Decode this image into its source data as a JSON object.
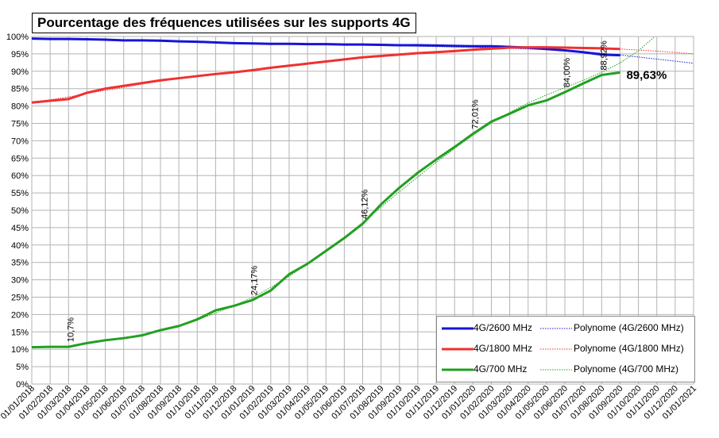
{
  "chart_data": {
    "type": "line",
    "title": "Pourcentage des fréquences utilisées sur les supports 4G",
    "xlabel": "",
    "ylabel": "",
    "ylim": [
      0,
      100
    ],
    "y_ticks": [
      "0%",
      "5%",
      "10%",
      "15%",
      "20%",
      "25%",
      "30%",
      "35%",
      "40%",
      "45%",
      "50%",
      "55%",
      "60%",
      "65%",
      "70%",
      "75%",
      "80%",
      "85%",
      "90%",
      "95%",
      "100%"
    ],
    "categories": [
      "01/01/2018",
      "01/02/2018",
      "01/03/2018",
      "01/04/2018",
      "01/05/2018",
      "01/06/2018",
      "01/07/2018",
      "01/08/2018",
      "01/09/2018",
      "01/10/2018",
      "01/11/2018",
      "01/12/2018",
      "01/01/2019",
      "01/02/2019",
      "01/03/2019",
      "01/04/2019",
      "01/05/2019",
      "01/06/2019",
      "01/07/2019",
      "01/08/2019",
      "01/09/2019",
      "01/10/2019",
      "01/11/2019",
      "01/12/2019",
      "01/01/2020",
      "01/02/2020",
      "01/03/2020",
      "01/04/2020",
      "01/05/2020",
      "01/06/2020",
      "01/07/2020",
      "01/08/2020",
      "01/09/2020",
      "01/10/2020",
      "01/11/2020",
      "01/12/2020",
      "01/01/2021"
    ],
    "grid": true,
    "legend_position": "bottom-right",
    "series": [
      {
        "name": "4G/2600 MHz",
        "color": "#1515d6",
        "values": [
          99.4,
          99.3,
          99.3,
          99.2,
          99.1,
          98.9,
          98.9,
          98.8,
          98.6,
          98.5,
          98.3,
          98.1,
          98.0,
          97.9,
          97.9,
          97.8,
          97.8,
          97.7,
          97.7,
          97.6,
          97.5,
          97.5,
          97.4,
          97.3,
          97.2,
          97.2,
          97.0,
          96.8,
          96.4,
          96.0,
          95.5,
          94.8,
          94.6,
          null,
          null,
          null,
          null
        ]
      },
      {
        "name": "4G/1800 MHz",
        "color": "#f03030",
        "values": [
          81.0,
          81.5,
          82.0,
          83.8,
          85.0,
          85.8,
          86.6,
          87.4,
          88.0,
          88.6,
          89.2,
          89.7,
          90.3,
          91.0,
          91.6,
          92.2,
          92.8,
          93.4,
          94.0,
          94.4,
          94.8,
          95.2,
          95.5,
          95.8,
          96.2,
          96.5,
          96.8,
          96.9,
          96.9,
          96.8,
          96.7,
          96.6,
          96.4,
          null,
          null,
          null,
          null
        ]
      },
      {
        "name": "4G/700 MHz",
        "color": "#22a022",
        "values": [
          10.6,
          10.7,
          10.7,
          11.8,
          12.6,
          13.2,
          14.0,
          15.5,
          16.7,
          18.6,
          21.2,
          22.5,
          24.17,
          26.9,
          31.6,
          34.6,
          38.3,
          42.0,
          46.12,
          51.7,
          56.5,
          60.8,
          64.6,
          68.2,
          72.01,
          75.5,
          77.8,
          80.2,
          81.6,
          84.0,
          86.5,
          88.92,
          89.63,
          null,
          null,
          null,
          null
        ]
      }
    ],
    "trendlines": [
      {
        "name": "Polynome (4G/2600 MHz)",
        "color": "#1515d6",
        "values": [
          99.4,
          99.3,
          99.2,
          99.1,
          99.0,
          98.9,
          98.8,
          98.7,
          98.6,
          98.5,
          98.3,
          98.2,
          98.1,
          98.0,
          97.9,
          97.8,
          97.7,
          97.6,
          97.5,
          97.4,
          97.3,
          97.2,
          97.1,
          97.0,
          96.9,
          96.7,
          96.6,
          96.4,
          96.2,
          95.9,
          95.6,
          95.2,
          94.7,
          94.1,
          93.5,
          92.9,
          92.3
        ]
      },
      {
        "name": "Polynome (4G/1800 MHz)",
        "color": "#f03030",
        "values": [
          81.0,
          81.8,
          82.6,
          83.6,
          84.5,
          85.4,
          86.3,
          87.1,
          87.9,
          88.6,
          89.3,
          89.9,
          90.5,
          91.1,
          91.7,
          92.3,
          92.8,
          93.3,
          93.8,
          94.3,
          94.7,
          95.1,
          95.5,
          95.8,
          96.1,
          96.4,
          96.6,
          96.8,
          96.9,
          96.9,
          96.8,
          96.6,
          96.4,
          96.1,
          95.8,
          95.4,
          95.0
        ]
      },
      {
        "name": "Polynome (4G/700 MHz)",
        "color": "#22a022",
        "values": [
          10.8,
          10.6,
          10.8,
          11.5,
          12.4,
          13.3,
          14.3,
          15.5,
          16.8,
          18.4,
          20.4,
          22.6,
          24.9,
          27.8,
          31.0,
          34.6,
          38.4,
          42.3,
          46.5,
          50.9,
          55.3,
          59.6,
          63.8,
          67.8,
          71.6,
          75.1,
          78.2,
          80.9,
          83.2,
          85.3,
          87.4,
          89.7,
          92.4,
          95.9,
          100.5,
          106,
          112
        ]
      }
    ],
    "annotations": [
      {
        "text": "10,7%",
        "series": "4G/700 MHz",
        "index": 2
      },
      {
        "text": "24,17%",
        "series": "4G/700 MHz",
        "index": 12
      },
      {
        "text": "46,12%",
        "series": "4G/700 MHz",
        "index": 18
      },
      {
        "text": "72,01%",
        "series": "4G/700 MHz",
        "index": 24
      },
      {
        "text": "84,00%",
        "series": "4G/700 MHz",
        "index": 29
      },
      {
        "text": "88,92%",
        "series": "4G/700 MHz",
        "index": 31
      },
      {
        "text": "89,63%",
        "series": "4G/700 MHz",
        "index": 32,
        "emphasis": true
      }
    ]
  }
}
